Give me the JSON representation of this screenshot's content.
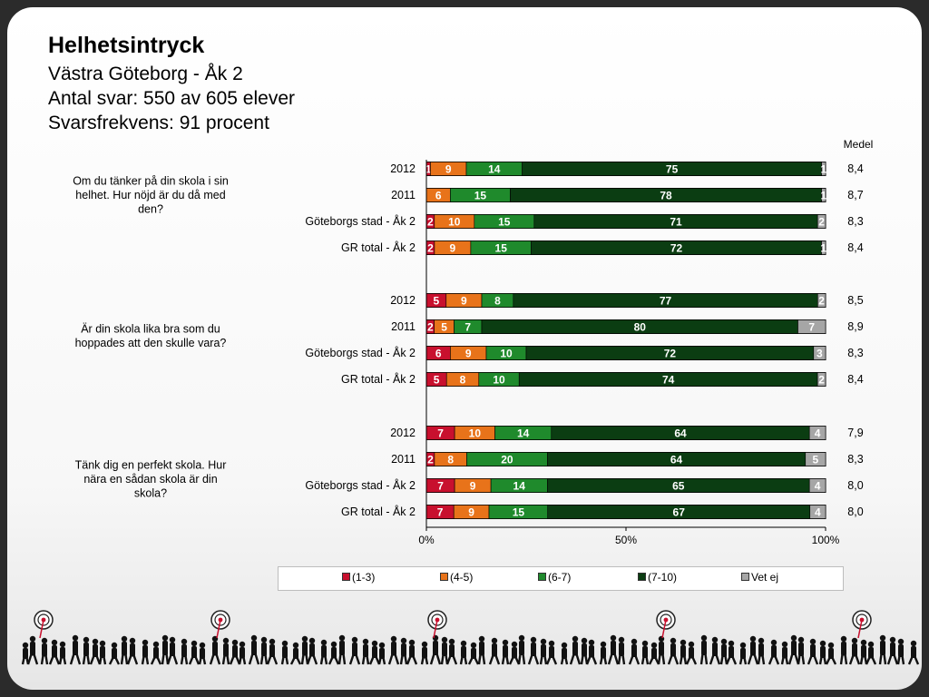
{
  "header": {
    "title": "Helhetsintryck",
    "school": "Västra Göteborg - Åk 2",
    "responses": "Antal svar: 550 av 605 elever",
    "response_rate": "Svarsfrekvens: 91 procent"
  },
  "colors": {
    "c1_3": "#c8102e",
    "c4_5": "#e8731a",
    "c6_7": "#1f8a2c",
    "c7_10": "#0b3d12",
    "vet_ej": "#a6a6a6"
  },
  "chart_data": {
    "type": "bar",
    "orientation": "horizontal",
    "stacked": true,
    "percent_scale": true,
    "mean_header": "Medel",
    "series_names": [
      "(1-3)",
      "(4-5)",
      "(6-7)",
      "(7-10)",
      "Vet ej"
    ],
    "xticks": [
      "0%",
      "50%",
      "100%"
    ],
    "xlim": [
      0,
      100
    ],
    "legend_position": "bottom",
    "groups": [
      {
        "question": "Om du tänker på din skola i sin helhet. Hur nöjd är du då med den?",
        "question_lines": [
          "Om du tänker på din skola i sin",
          "helhet. Hur nöjd är du då med",
          "den?"
        ],
        "rows": [
          {
            "label": "2012",
            "values": [
              1,
              9,
              14,
              75,
              1
            ],
            "mean": "8,4"
          },
          {
            "label": "2011",
            "values": [
              0,
              6,
              15,
              78,
              1
            ],
            "mean": "8,7"
          },
          {
            "label": "Göteborgs stad - Åk 2",
            "values": [
              2,
              10,
              15,
              71,
              2
            ],
            "mean": "8,3"
          },
          {
            "label": "GR total - Åk 2",
            "values": [
              2,
              9,
              15,
              72,
              1
            ],
            "mean": "8,4"
          }
        ]
      },
      {
        "question": "Är din skola lika bra som du hoppades att den skulle vara?",
        "question_lines": [
          "Är din skola lika bra som du",
          "hoppades att den skulle vara?"
        ],
        "rows": [
          {
            "label": "2012",
            "values": [
              5,
              9,
              8,
              77,
              2
            ],
            "mean": "8,5"
          },
          {
            "label": "2011",
            "values": [
              2,
              5,
              7,
              80,
              7
            ],
            "mean": "8,9"
          },
          {
            "label": "Göteborgs stad - Åk 2",
            "values": [
              6,
              9,
              10,
              72,
              3
            ],
            "mean": "8,3"
          },
          {
            "label": "GR total - Åk 2",
            "values": [
              5,
              8,
              10,
              74,
              2
            ],
            "mean": "8,4"
          }
        ]
      },
      {
        "question": "Tänk dig en perfekt skola. Hur nära en sådan skola är din skola?",
        "question_lines": [
          "Tänk dig en perfekt skola. Hur",
          "nära en sådan skola är din",
          "skola?"
        ],
        "rows": [
          {
            "label": "2012",
            "values": [
              7,
              10,
              14,
              64,
              4
            ],
            "mean": "7,9"
          },
          {
            "label": "2011",
            "values": [
              2,
              8,
              20,
              64,
              5
            ],
            "mean": "8,3"
          },
          {
            "label": "Göteborgs stad - Åk 2",
            "values": [
              7,
              9,
              14,
              65,
              4
            ],
            "mean": "8,0"
          },
          {
            "label": "GR total - Åk 2",
            "values": [
              7,
              9,
              15,
              67,
              4
            ],
            "mean": "8,0"
          }
        ]
      }
    ]
  }
}
